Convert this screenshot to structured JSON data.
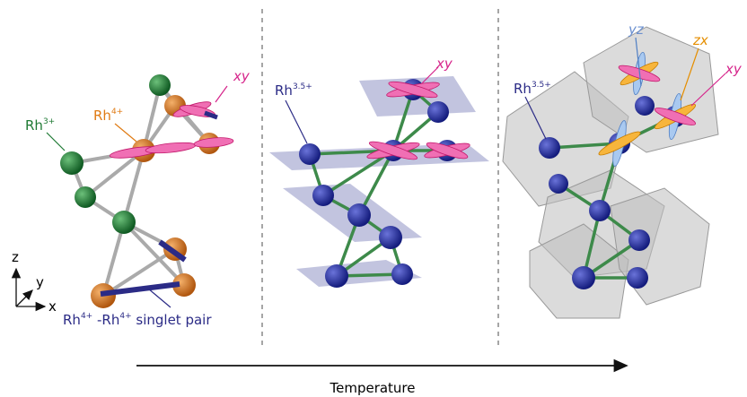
{
  "panel_low": {
    "orbital_label": "xy",
    "rh3": {
      "base": "Rh",
      "sup": "3+"
    },
    "rh4": {
      "base": "Rh",
      "sup": "4+"
    },
    "axes": {
      "z": "z",
      "y": "y",
      "x": "x"
    },
    "singlet_pair": {
      "base1": "Rh",
      "sup1": "4+",
      "base2": " -Rh",
      "sup2": "4+",
      "tail": " singlet pair"
    }
  },
  "panel_mid": {
    "orbital_label": "xy",
    "rh": {
      "base": "Rh",
      "sup": "3.5+"
    }
  },
  "panel_high": {
    "rh": {
      "base": "Rh",
      "sup": "3.5+"
    },
    "yz_label": "yz",
    "zx_label": "zx",
    "xy_label": "xy"
  },
  "arrow_label": "Temperature"
}
